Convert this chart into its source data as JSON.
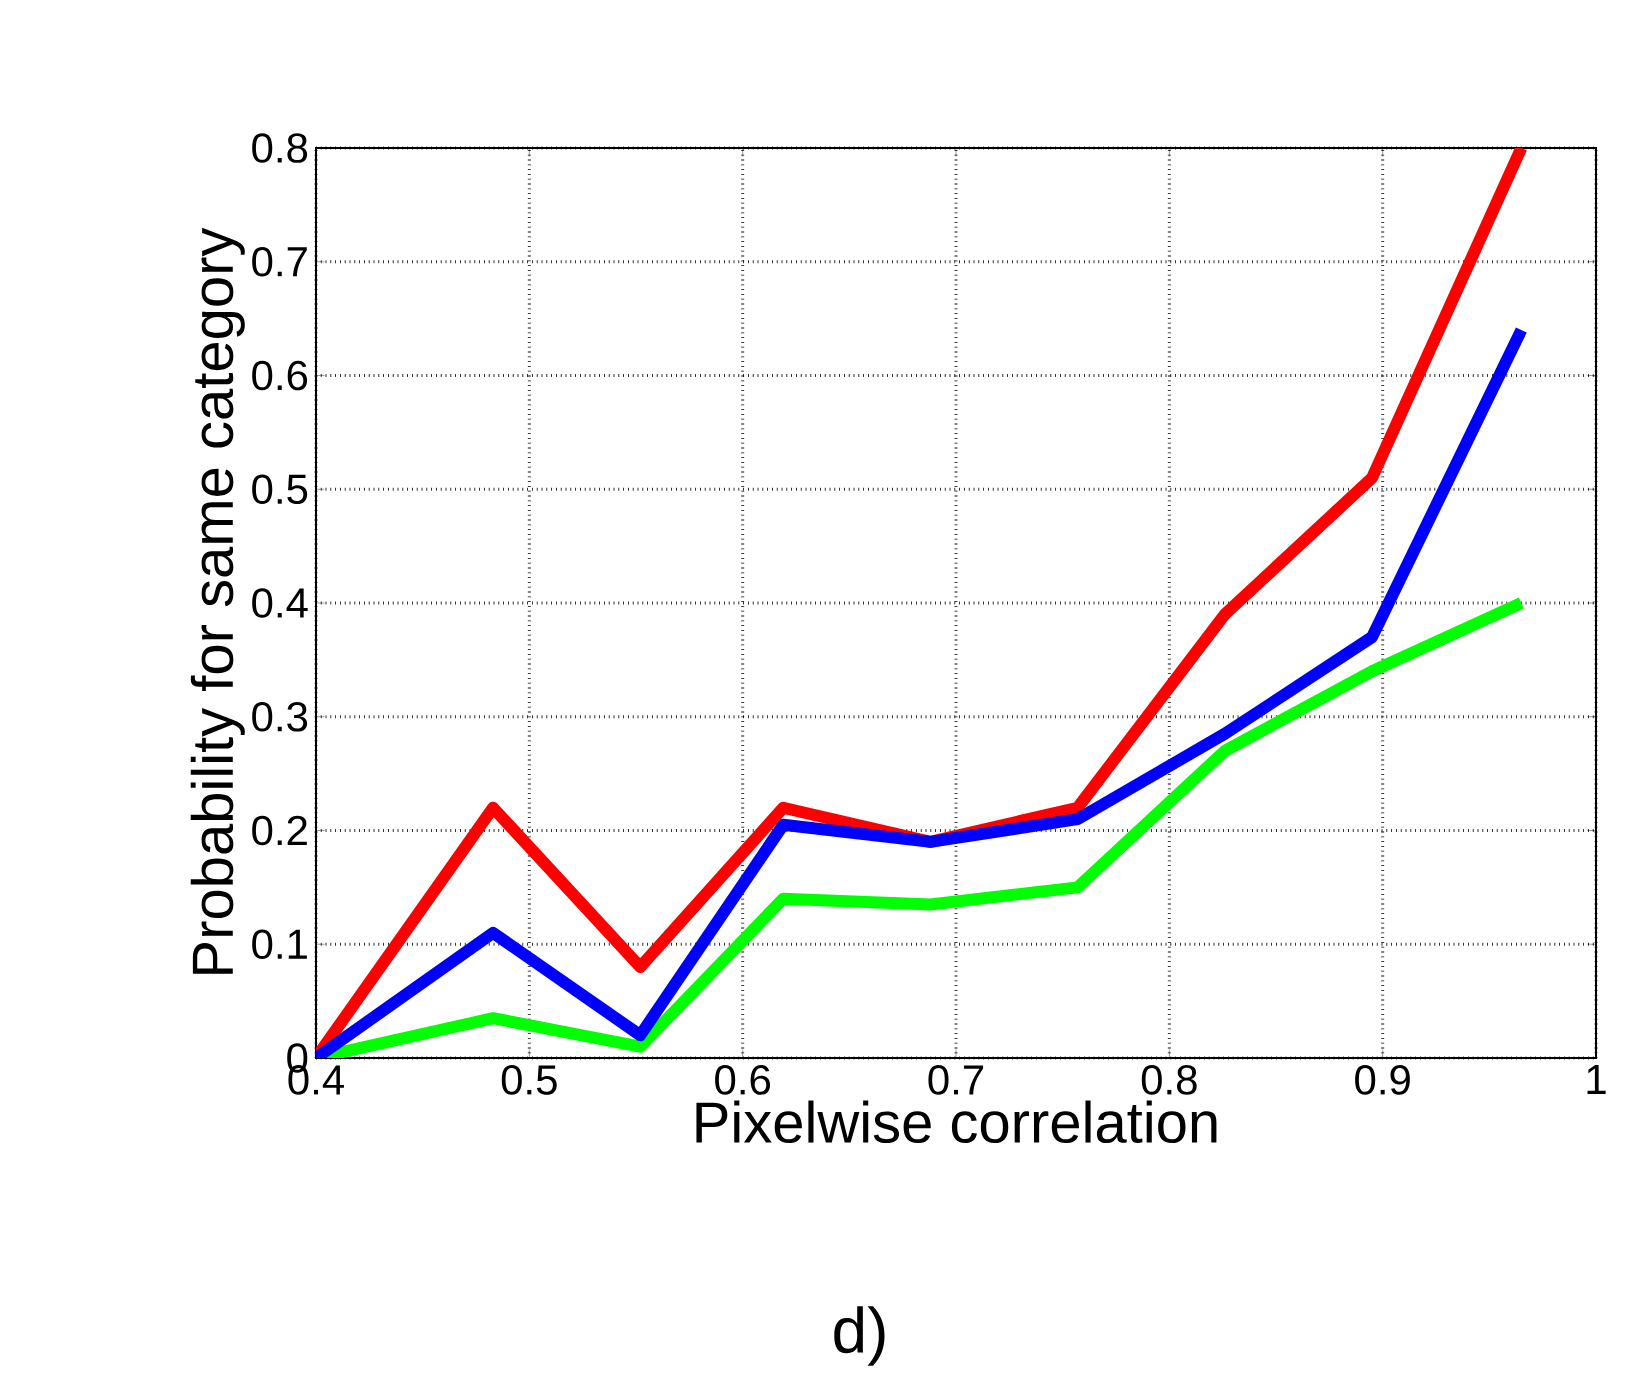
{
  "chart_data": {
    "type": "line",
    "xlabel": "Pixelwise correlation",
    "ylabel": "Probability  for same category",
    "annotations": [
      "d)"
    ],
    "x": [
      0.4,
      0.483,
      0.552,
      0.619,
      0.688,
      0.757,
      0.826,
      0.895,
      0.965
    ],
    "series": [
      {
        "color": "#ff0000",
        "values": [
          0,
          0.22,
          0.08,
          0.22,
          0.19,
          0.22,
          0.39,
          0.51,
          0.8
        ]
      },
      {
        "color": "#00ff00",
        "values": [
          0,
          0.035,
          0.01,
          0.14,
          0.135,
          0.15,
          0.27,
          0.34,
          0.4
        ]
      },
      {
        "color": "#0000ff",
        "values": [
          0,
          0.11,
          0.02,
          0.205,
          0.19,
          0.21,
          0.285,
          0.37,
          0.64
        ]
      }
    ],
    "xlim": [
      0.4,
      1
    ],
    "ylim": [
      0,
      0.8
    ],
    "xticks": [
      0.4,
      0.5,
      0.6,
      0.7,
      0.8,
      0.9,
      1
    ],
    "yticks": [
      0,
      0.1,
      0.2,
      0.3,
      0.4,
      0.5,
      0.6,
      0.7,
      0.8
    ],
    "grid": true,
    "line_style": "solid",
    "marker": "none"
  }
}
